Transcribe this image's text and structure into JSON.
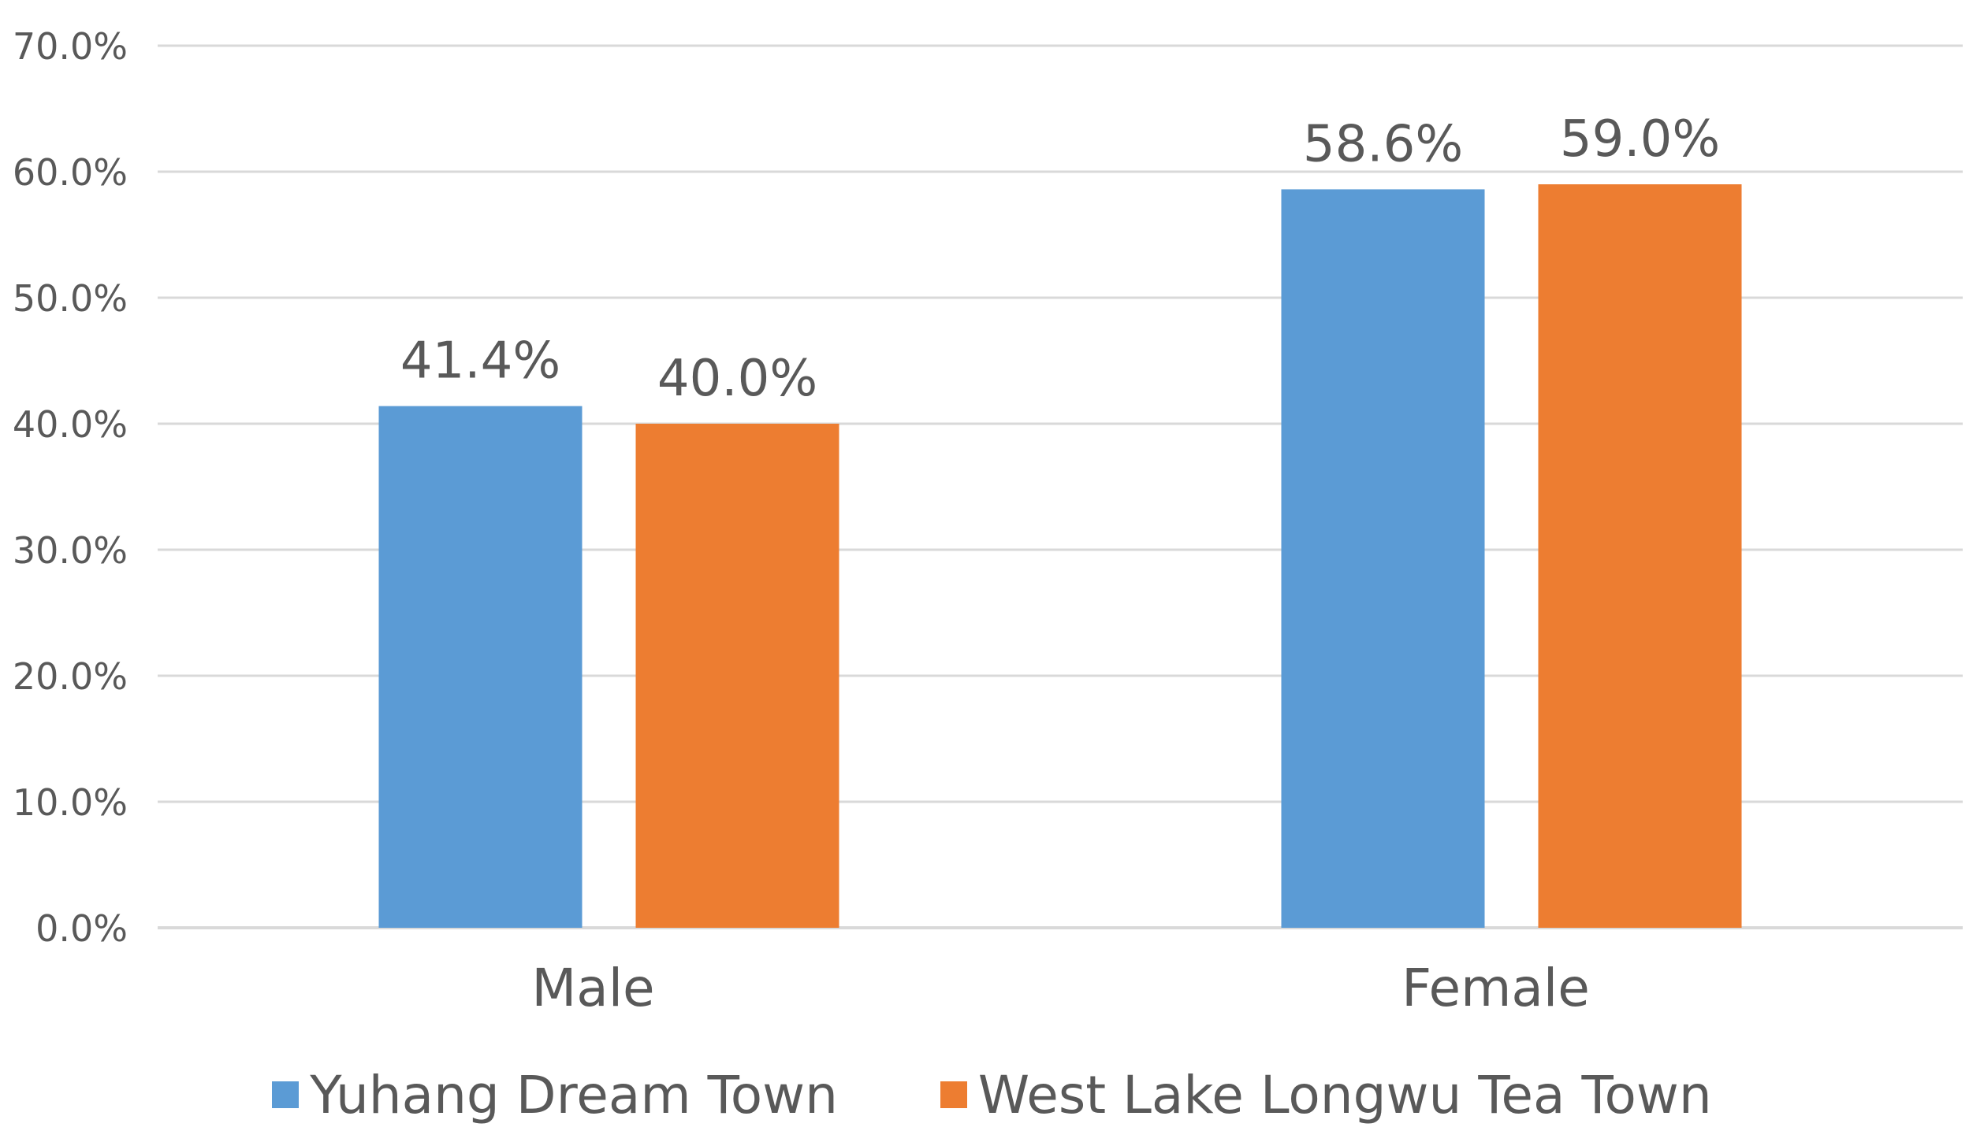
{
  "chart_data": {
    "type": "bar",
    "title": "",
    "xlabel": "",
    "ylabel": "",
    "categories": [
      "Male",
      "Female"
    ],
    "series": [
      {
        "name": "Yuhang Dream Town",
        "values": [
          41.4,
          58.6
        ],
        "labels": [
          "41.4%",
          "58.6%"
        ],
        "color": "#5B9BD5"
      },
      {
        "name": "West Lake Longwu Tea Town",
        "values": [
          40.0,
          59.0
        ],
        "labels": [
          "40.0%",
          "59.0%"
        ],
        "color": "#ED7D31"
      }
    ],
    "ylim": [
      0,
      70
    ],
    "y_ticks": [
      "0.0%",
      "10.0%",
      "20.0%",
      "30.0%",
      "40.0%",
      "50.0%",
      "60.0%",
      "70.0%"
    ],
    "grid": true,
    "legend_position": "bottom",
    "colors": {
      "gridline": "#D9D9D9",
      "text": "#595959"
    }
  }
}
